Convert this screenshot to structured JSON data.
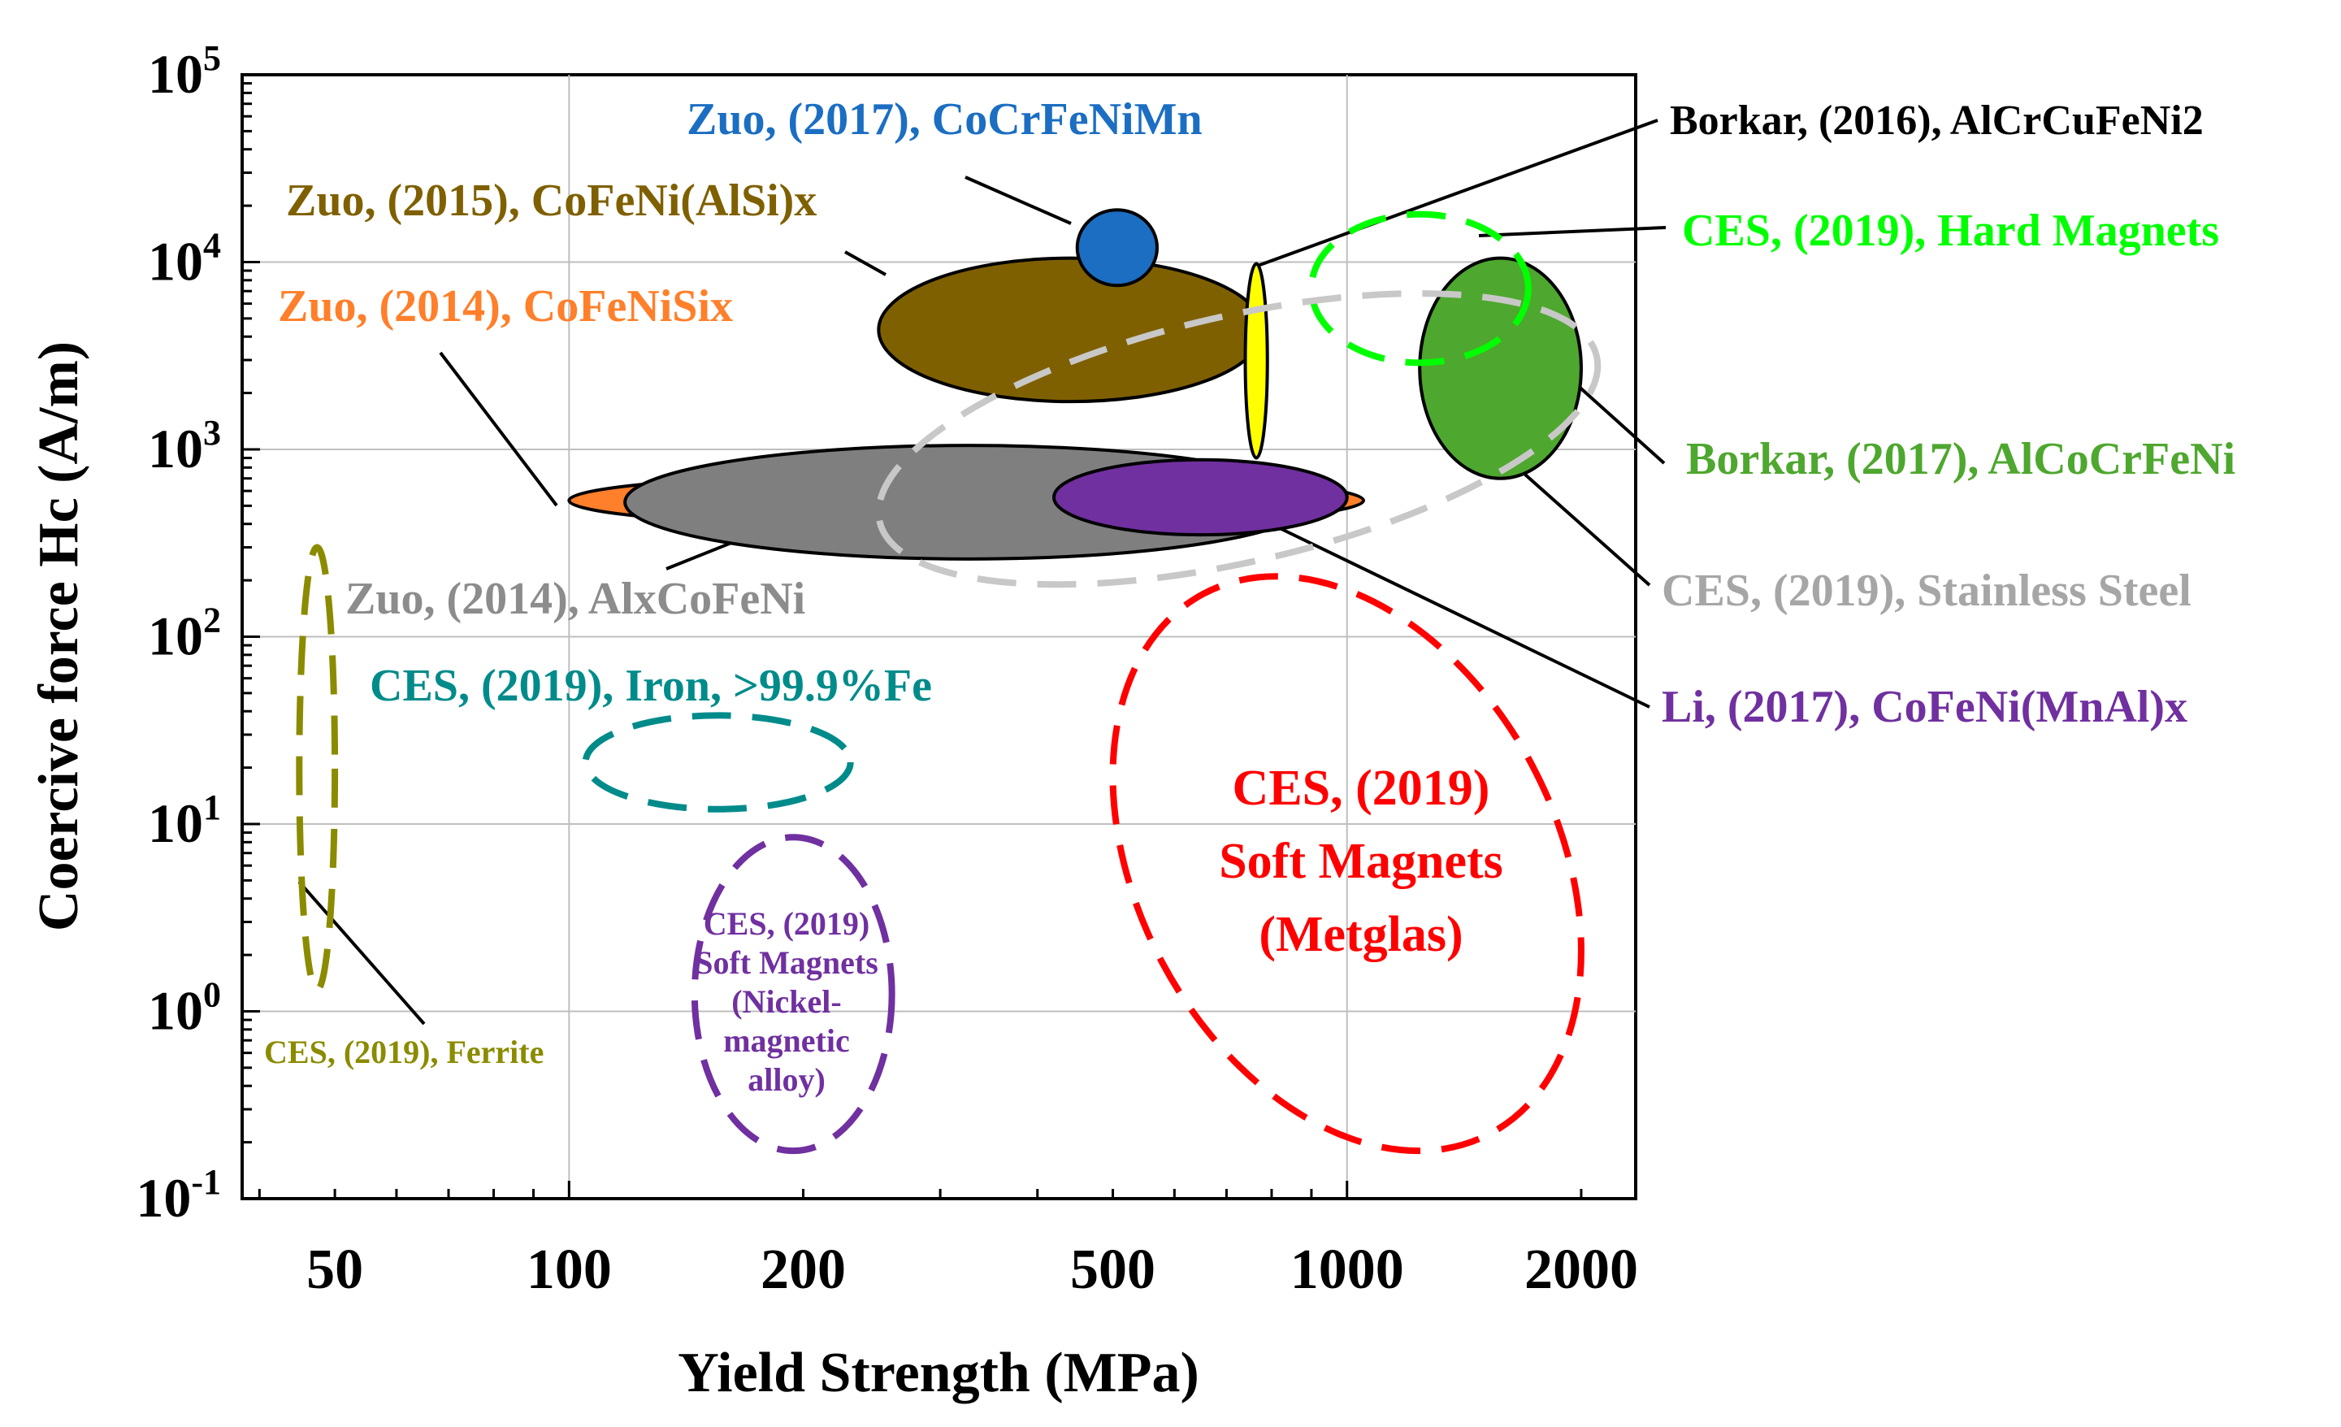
{
  "chart_data": {
    "type": "scatter",
    "subtype": "region-ellipses (Ashby-style property map)",
    "xlabel": "Yield Strength (MPa)",
    "ylabel": "Coercive force Hc (A/m)",
    "xscale": "log",
    "yscale": "log",
    "xlim": [
      38,
      2350
    ],
    "ylim": [
      0.1,
      100000
    ],
    "x_ticks": [
      {
        "value": 50,
        "label": "50"
      },
      {
        "value": 100,
        "label": "100"
      },
      {
        "value": 200,
        "label": "200"
      },
      {
        "value": 500,
        "label": "500"
      },
      {
        "value": 1000,
        "label": "1000"
      },
      {
        "value": 2000,
        "label": "2000"
      }
    ],
    "y_ticks": [
      {
        "value": 0.1,
        "base": "10",
        "exp": "-1"
      },
      {
        "value": 1,
        "base": "10",
        "exp": "0"
      },
      {
        "value": 10,
        "base": "10",
        "exp": "1"
      },
      {
        "value": 100,
        "base": "10",
        "exp": "2"
      },
      {
        "value": 1000,
        "base": "10",
        "exp": "3"
      },
      {
        "value": 10000,
        "base": "10",
        "exp": "4"
      },
      {
        "value": 100000,
        "base": "10",
        "exp": "5"
      }
    ],
    "gridlines_x": [
      100,
      1000
    ],
    "gridlines_y": [
      1,
      10,
      100,
      1000,
      10000
    ],
    "series": [
      {
        "name": "Zuo, (2014), CoFeNiSix",
        "label": "Zuo, (2014), CoFeNiSix",
        "color": "#ff7f2a",
        "style": "filled",
        "x_range": [
          100,
          1050
        ],
        "y_range": [
          380,
          750
        ]
      },
      {
        "name": "Zuo, (2014), AlxCoFeNi",
        "label": "Zuo, (2014), AlxCoFeNi",
        "color": "#7f7f7f",
        "style": "filled",
        "x_range": [
          118,
          900
        ],
        "y_range": [
          260,
          1050
        ]
      },
      {
        "name": "Li, (2017), CoFeNi(MnAl)x",
        "label": "Li, (2017), CoFeNi(MnAl)x",
        "color": "#7030a0",
        "style": "filled",
        "x_range": [
          420,
          1000
        ],
        "y_range": [
          350,
          880
        ]
      },
      {
        "name": "Zuo, (2015), CoFeNi(AlSi)x",
        "label": "Zuo, (2015), CoFeNi(AlSi)x",
        "color": "#7f6000",
        "style": "filled",
        "x_range": [
          250,
          780
        ],
        "y_range": [
          1800,
          10500
        ]
      },
      {
        "name": "Zuo, (2017), CoCrFeNiMn",
        "label": "Zuo, (2017), CoCrFeNiMn",
        "color": "#1b6ec2",
        "style": "filled",
        "x_range": [
          450,
          570
        ],
        "y_range": [
          7500,
          19000
        ]
      },
      {
        "name": "Borkar, (2016), AlCrCuFeNi2",
        "label": "Borkar, (2016), AlCrCuFeNi2",
        "color": "#ffff00",
        "style": "filled",
        "x_range": [
          740,
          790
        ],
        "y_range": [
          900,
          9800
        ]
      },
      {
        "name": "Borkar, (2017), AlCoCrFeNi",
        "label": "Borkar, (2017), AlCoCrFeNi",
        "color": "#4ea72e",
        "style": "filled",
        "x_range": [
          1240,
          2000
        ],
        "y_range": [
          700,
          10500
        ]
      },
      {
        "name": "CES, (2019), Hard Magnets",
        "label": "CES, (2019), Hard Magnets",
        "color": "#00ff00",
        "style": "dashed",
        "x_range": [
          900,
          1710
        ],
        "y_range": [
          2900,
          18000
        ]
      },
      {
        "name": "CES, (2019), Stainless Steel",
        "label": "CES, (2019), Stainless Steel",
        "color": "#c8c8c8",
        "style": "dashed",
        "x_range": [
          250,
          2100
        ],
        "y_range": [
          190,
          6800
        ]
      },
      {
        "name": "CES, (2019), Iron, >99.9%Fe",
        "label": "CES, (2019), Iron, >99.9%Fe",
        "color": "#008b8b",
        "style": "dashed",
        "x_range": [
          105,
          230
        ],
        "y_range": [
          12,
          38
        ]
      },
      {
        "name": "CES, (2019), Ferrite",
        "label": "CES, (2019), Ferrite",
        "color": "#8b8b00",
        "style": "dashed",
        "x_range": [
          45,
          50
        ],
        "y_range": [
          1.3,
          300
        ]
      },
      {
        "name": "CES, (2019) Soft Magnets (Nickel-magnetic alloy)",
        "label_lines": [
          "CES, (2019)",
          "Soft Magnets",
          "(Nickel-",
          "magnetic",
          "alloy)"
        ],
        "color": "#7030a0",
        "style": "dashed",
        "x_range": [
          145,
          260
        ],
        "y_range": [
          0.18,
          8.5
        ]
      },
      {
        "name": "CES, (2019) Soft Magnets (Metglas)",
        "label_lines": [
          "CES, (2019)",
          "Soft Magnets",
          "(Metglas)"
        ],
        "color": "#ff0000",
        "style": "dashed",
        "x_range": [
          500,
          2000
        ],
        "y_range": [
          0.18,
          210
        ]
      }
    ]
  }
}
